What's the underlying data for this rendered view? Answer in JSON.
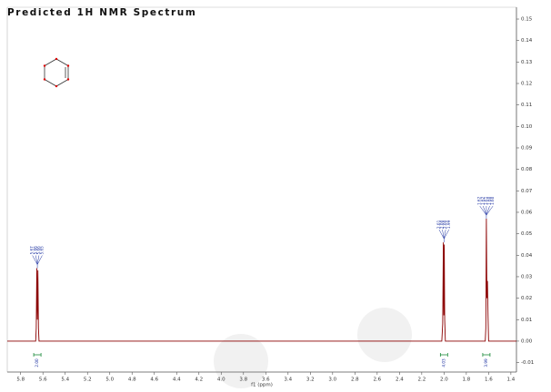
{
  "chart_data": {
    "type": "line",
    "title": "Predicted 1H NMR Spectrum",
    "x_label": "f1 (ppm)",
    "color": "#8b0000",
    "x": [
      5.92,
      5.665,
      5.66,
      5.655,
      5.65,
      5.645,
      5.64,
      5.635,
      2.02,
      2.012,
      2.006,
      2.002,
      1.998,
      1.994,
      1.988,
      1.63,
      1.625,
      1.62,
      1.615,
      1.61,
      1.605,
      1.6,
      1.35
    ],
    "values": [
      0,
      0,
      0.006,
      0.034,
      0.01,
      0.033,
      0.006,
      0,
      0,
      0.008,
      0.046,
      0.012,
      0.045,
      0.01,
      0,
      0,
      0.006,
      0.057,
      0.02,
      0.028,
      0.012,
      0,
      0
    ],
    "xlim": [
      5.92,
      1.35
    ],
    "xticks": [
      5.8,
      5.6,
      5.4,
      5.2,
      {
        "value": 5,
        "label": "5.0"
      },
      4.8,
      4.6,
      4.4,
      4.2,
      {
        "value": 4,
        "label": "4.0"
      },
      3.8,
      3.6,
      3.4,
      3.2,
      {
        "value": 3,
        "label": "3.0"
      },
      2.8,
      2.6,
      2.4,
      2.2,
      {
        "value": 2,
        "label": "2.0"
      },
      1.8,
      1.6,
      1.4
    ],
    "ylim": [
      -0.0144,
      0.1555
    ],
    "yticks": [
      -0.01,
      {
        "value": 0,
        "label": "0.00"
      },
      0.01,
      0.02,
      0.03,
      0.04,
      0.05,
      0.06,
      0.07,
      0.08,
      0.09,
      {
        "value": 0.1,
        "label": "0.10"
      },
      0.11,
      0.12,
      0.13,
      0.14,
      0.15
    ],
    "peaks": [
      {
        "x": 5.65,
        "y": 0.034,
        "labels": [
          "5.67",
          "5.66",
          "5.66",
          "5.65"
        ]
      },
      {
        "x": 2.0,
        "y": 0.046,
        "labels": [
          "2.01",
          "2.00",
          "2.00",
          "1.99"
        ]
      },
      {
        "x": 1.62,
        "y": 0.057,
        "labels": [
          "1.62",
          "1.62",
          "1.61",
          "1.60",
          "1.60"
        ]
      }
    ],
    "integrals": [
      {
        "x": 5.65,
        "label": "2.00"
      },
      {
        "x": 2.0,
        "label": "4.03"
      },
      {
        "x": 1.62,
        "label": "3.99"
      }
    ]
  }
}
